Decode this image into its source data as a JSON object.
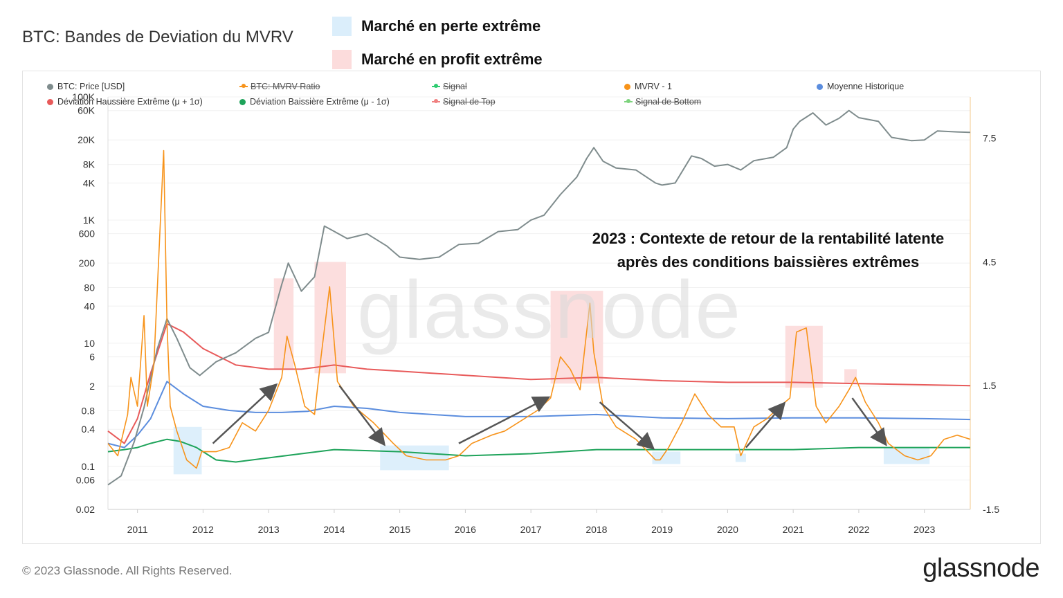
{
  "title": "BTC: Bandes de Deviation du MVRV",
  "highlight_legend": [
    {
      "label": "Marché en perte extrême",
      "color": "#dbeefb"
    },
    {
      "label": "Marché en profit extrême",
      "color": "#fcdcdc"
    }
  ],
  "legend": [
    {
      "label": "BTC: Price [USD]",
      "color": "#7f8c8d",
      "struck": false
    },
    {
      "label": "BTC: MVRV Ratio",
      "color": "#f7931a",
      "struck": true
    },
    {
      "label": "Signal",
      "color": "#2ecc71",
      "struck": true
    },
    {
      "label": "MVRV - 1",
      "color": "#f7931a",
      "struck": false
    },
    {
      "label": "Moyenne Historique",
      "color": "#5b8dde",
      "struck": false
    },
    {
      "label": "Déviation Haussière Extrême (μ + 1σ)",
      "color": "#e85a5a",
      "struck": false
    },
    {
      "label": "Déviation Baissière Extrême (μ - 1σ)",
      "color": "#1ea35a",
      "struck": false
    },
    {
      "label": "Signal de Top",
      "color": "#f08080",
      "struck": true
    },
    {
      "label": "Signal de Bottom",
      "color": "#7dd37d",
      "struck": true
    }
  ],
  "annotation": {
    "line1": "2023 : Contexte de retour de la rentabilité latente",
    "line2": "après des conditions baissières extrêmes"
  },
  "watermark": "glassnode",
  "footer": "© 2023 Glassnode. All Rights Reserved.",
  "brand": "glassnode",
  "chart_data": {
    "type": "line",
    "x_range": [
      2010.55,
      2023.7
    ],
    "x_ticks": [
      "2011",
      "2012",
      "2013",
      "2014",
      "2015",
      "2016",
      "2017",
      "2018",
      "2019",
      "2020",
      "2021",
      "2022",
      "2023"
    ],
    "y_left_scale": "log",
    "y_left_range": [
      0.02,
      100000
    ],
    "y_left_ticks": [
      "100K",
      "60K",
      "20K",
      "8K",
      "4K",
      "1K",
      "600",
      "200",
      "80",
      "40",
      "10",
      "6",
      "2",
      "0.8",
      "0.4",
      "0.1",
      "0.06",
      "0.02"
    ],
    "y_right_range": [
      -1.5,
      8.5
    ],
    "y_right_ticks": [
      "7.5",
      "4.5",
      "1.5",
      "-1.5"
    ],
    "series": [
      {
        "name": "BTC: Price [USD]",
        "axis": "left",
        "color": "#7f8c8d",
        "x": [
          2010.55,
          2010.75,
          2010.95,
          2011.1,
          2011.3,
          2011.45,
          2011.6,
          2011.8,
          2011.95,
          2012.2,
          2012.5,
          2012.8,
          2013.0,
          2013.2,
          2013.3,
          2013.5,
          2013.7,
          2013.85,
          2013.95,
          2014.2,
          2014.5,
          2014.8,
          2015.0,
          2015.3,
          2015.6,
          2015.9,
          2016.2,
          2016.5,
          2016.8,
          2017.0,
          2017.2,
          2017.45,
          2017.7,
          2017.85,
          2017.96,
          2018.1,
          2018.3,
          2018.6,
          2018.9,
          2019.0,
          2019.2,
          2019.45,
          2019.6,
          2019.8,
          2020.0,
          2020.2,
          2020.4,
          2020.7,
          2020.9,
          2021.0,
          2021.1,
          2021.3,
          2021.5,
          2021.7,
          2021.85,
          2022.0,
          2022.3,
          2022.5,
          2022.8,
          2023.0,
          2023.2,
          2023.5,
          2023.7
        ],
        "y": [
          0.05,
          0.07,
          0.25,
          0.9,
          8,
          25,
          12,
          4,
          3,
          5,
          7,
          12,
          15,
          90,
          200,
          70,
          120,
          800,
          700,
          500,
          600,
          380,
          250,
          230,
          250,
          400,
          420,
          650,
          700,
          1000,
          1200,
          2600,
          5000,
          10000,
          15000,
          9000,
          7000,
          6500,
          4000,
          3700,
          4000,
          11000,
          10000,
          7500,
          8000,
          6500,
          9200,
          10500,
          15000,
          30000,
          40000,
          55000,
          35000,
          45000,
          60000,
          46000,
          40000,
          22000,
          19500,
          20000,
          28000,
          27000,
          26500
        ]
      },
      {
        "name": "MVRV - 1",
        "axis": "right",
        "color": "#f7931a",
        "x": [
          2010.55,
          2010.7,
          2010.85,
          2010.9,
          2011.0,
          2011.1,
          2011.15,
          2011.25,
          2011.35,
          2011.4,
          2011.45,
          2011.5,
          2011.6,
          2011.75,
          2011.9,
          2011.98,
          2012.2,
          2012.4,
          2012.6,
          2012.8,
          2013.0,
          2013.2,
          2013.28,
          2013.4,
          2013.55,
          2013.7,
          2013.8,
          2013.93,
          2014.05,
          2014.3,
          2014.6,
          2014.9,
          2015.1,
          2015.4,
          2015.7,
          2015.9,
          2016.1,
          2016.4,
          2016.6,
          2016.9,
          2017.1,
          2017.3,
          2017.45,
          2017.6,
          2017.75,
          2017.9,
          2017.96,
          2018.1,
          2018.3,
          2018.6,
          2018.9,
          2018.97,
          2019.1,
          2019.3,
          2019.5,
          2019.7,
          2019.9,
          2020.1,
          2020.2,
          2020.4,
          2020.6,
          2020.8,
          2020.95,
          2021.05,
          2021.2,
          2021.35,
          2021.5,
          2021.7,
          2021.85,
          2021.95,
          2022.1,
          2022.3,
          2022.45,
          2022.7,
          2022.9,
          2023.1,
          2023.3,
          2023.5,
          2023.7
        ],
        "y": [
          0.1,
          -0.2,
          0.8,
          1.7,
          1.0,
          3.2,
          1.0,
          2.0,
          5.5,
          7.2,
          3.0,
          1.0,
          0.4,
          -0.3,
          -0.5,
          -0.1,
          -0.1,
          0.0,
          0.6,
          0.4,
          0.9,
          1.7,
          2.7,
          2.0,
          1.0,
          0.8,
          2.2,
          3.9,
          1.6,
          1.0,
          0.6,
          0.1,
          -0.2,
          -0.3,
          -0.3,
          -0.2,
          0.1,
          0.3,
          0.4,
          0.7,
          0.9,
          1.2,
          2.2,
          1.9,
          1.4,
          3.5,
          2.3,
          1.0,
          0.5,
          0.2,
          -0.3,
          -0.3,
          0.0,
          0.6,
          1.3,
          0.8,
          0.5,
          0.5,
          -0.2,
          0.5,
          0.7,
          1.0,
          1.2,
          2.8,
          2.9,
          1.0,
          0.6,
          1.0,
          1.4,
          1.7,
          1.1,
          0.6,
          0.1,
          -0.2,
          -0.3,
          -0.2,
          0.2,
          0.3,
          0.2
        ]
      },
      {
        "name": "Moyenne Historique",
        "axis": "right",
        "color": "#5b8dde",
        "x": [
          2010.55,
          2010.8,
          2011.0,
          2011.2,
          2011.45,
          2011.7,
          2012.0,
          2012.4,
          2012.8,
          2013.2,
          2013.6,
          2014.0,
          2014.5,
          2015.0,
          2016.0,
          2017.0,
          2018.0,
          2019.0,
          2020.0,
          2021.0,
          2022.0,
          2023.0,
          2023.7
        ],
        "y": [
          0.1,
          0.0,
          0.3,
          0.7,
          1.6,
          1.3,
          1.0,
          0.9,
          0.85,
          0.85,
          0.88,
          1.0,
          0.95,
          0.85,
          0.75,
          0.75,
          0.8,
          0.72,
          0.7,
          0.72,
          0.72,
          0.7,
          0.68
        ]
      },
      {
        "name": "Déviation Haussière Extrême (μ + 1σ)",
        "axis": "right",
        "color": "#e85a5a",
        "x": [
          2010.55,
          2010.8,
          2011.0,
          2011.2,
          2011.45,
          2011.7,
          2012.0,
          2012.5,
          2013.0,
          2013.5,
          2014.0,
          2014.5,
          2015.0,
          2016.0,
          2017.0,
          2018.0,
          2019.0,
          2020.0,
          2021.0,
          2022.0,
          2023.0,
          2023.7
        ],
        "y": [
          0.4,
          0.1,
          0.7,
          1.8,
          3.0,
          2.8,
          2.4,
          2.0,
          1.9,
          1.9,
          2.0,
          1.9,
          1.85,
          1.75,
          1.65,
          1.7,
          1.62,
          1.58,
          1.58,
          1.55,
          1.52,
          1.5
        ]
      },
      {
        "name": "Déviation Baissière Extrême (μ - 1σ)",
        "axis": "right",
        "color": "#1ea35a",
        "x": [
          2010.55,
          2010.8,
          2011.0,
          2011.2,
          2011.45,
          2011.65,
          2011.9,
          2012.2,
          2012.5,
          2013.0,
          2013.5,
          2014.0,
          2015.0,
          2016.0,
          2017.0,
          2018.0,
          2019.0,
          2020.0,
          2021.0,
          2022.0,
          2023.0,
          2023.7
        ],
        "y": [
          -0.1,
          -0.05,
          0.0,
          0.1,
          0.2,
          0.15,
          0.0,
          -0.3,
          -0.35,
          -0.25,
          -0.15,
          -0.05,
          -0.1,
          -0.2,
          -0.15,
          -0.05,
          -0.05,
          -0.05,
          -0.05,
          0.0,
          0.0,
          0.0
        ]
      }
    ],
    "highlight_regions": [
      {
        "type": "loss",
        "x": [
          2011.55,
          2011.98
        ],
        "y": [
          -0.65,
          0.5
        ]
      },
      {
        "type": "profit",
        "x": [
          2013.08,
          2013.38
        ],
        "y": [
          1.9,
          4.1
        ]
      },
      {
        "type": "profit",
        "x": [
          2013.7,
          2014.18
        ],
        "y": [
          1.8,
          4.5
        ]
      },
      {
        "type": "loss",
        "x": [
          2014.7,
          2015.75
        ],
        "y": [
          -0.55,
          0.05
        ]
      },
      {
        "type": "profit",
        "x": [
          2017.3,
          2018.1
        ],
        "y": [
          1.55,
          3.8
        ]
      },
      {
        "type": "loss",
        "x": [
          2018.85,
          2019.28
        ],
        "y": [
          -0.4,
          -0.1
        ]
      },
      {
        "type": "loss",
        "x": [
          2020.12,
          2020.28
        ],
        "y": [
          -0.35,
          -0.15
        ]
      },
      {
        "type": "profit",
        "x": [
          2020.88,
          2021.45
        ],
        "y": [
          1.45,
          2.95
        ]
      },
      {
        "type": "profit",
        "x": [
          2021.78,
          2021.97
        ],
        "y": [
          1.55,
          1.9
        ]
      },
      {
        "type": "loss",
        "x": [
          2022.38,
          2023.08
        ],
        "y": [
          -0.4,
          0.0
        ]
      }
    ],
    "arrows": [
      {
        "x": [
          2012.15,
          2013.1
        ],
        "y": [
          0.1,
          1.5
        ]
      },
      {
        "x": [
          2014.08,
          2014.75
        ],
        "y": [
          1.5,
          0.1
        ]
      },
      {
        "x": [
          2015.9,
          2017.25
        ],
        "y": [
          0.1,
          1.2
        ]
      },
      {
        "x": [
          2018.05,
          2018.85
        ],
        "y": [
          1.1,
          0.0
        ]
      },
      {
        "x": [
          2020.28,
          2020.85
        ],
        "y": [
          0.0,
          1.05
        ]
      },
      {
        "x": [
          2021.9,
          2022.4
        ],
        "y": [
          1.2,
          0.1
        ]
      }
    ]
  }
}
